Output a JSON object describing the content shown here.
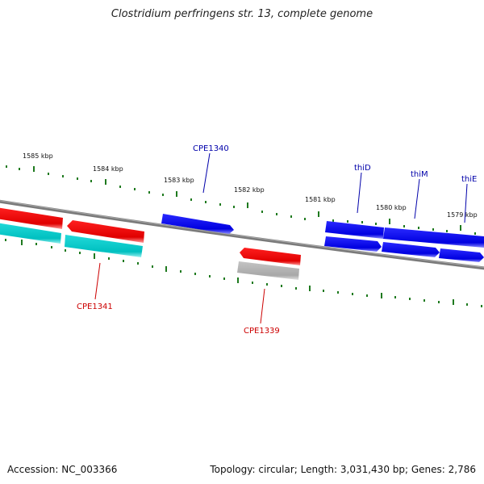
{
  "title": "Clostridium perfringens str. 13, complete genome",
  "footer": {
    "accession": "Accession: NC_003366",
    "summary": "Topology: circular; Length: 3,031,430 bp; Genes: 2,786"
  },
  "colors": {
    "backbone": "#7a7a7a",
    "ticks": "#1f7a1f",
    "forward_gene": "#0000ee",
    "reverse_gene": "#ee0000",
    "forward_cds": "#0000dd",
    "reverse_cds": "#00c8c8",
    "pseudo": "#b0b0b0",
    "forward_label": "#0000aa",
    "reverse_label": "#cc0000"
  },
  "ticks": [
    {
      "label": "1585 kbp"
    },
    {
      "label": "1584 kbp"
    },
    {
      "label": "1583 kbp"
    },
    {
      "label": "1582 kbp"
    },
    {
      "label": "1581 kbp"
    },
    {
      "label": "1580 kbp"
    },
    {
      "label": "1579 kbp"
    }
  ],
  "gene_labels": {
    "cpe1340": "CPE1340",
    "thid": "thiD",
    "thim": "thiM",
    "thie": "thiE",
    "cpe1341": "CPE1341",
    "cpe1339": "CPE1339"
  }
}
